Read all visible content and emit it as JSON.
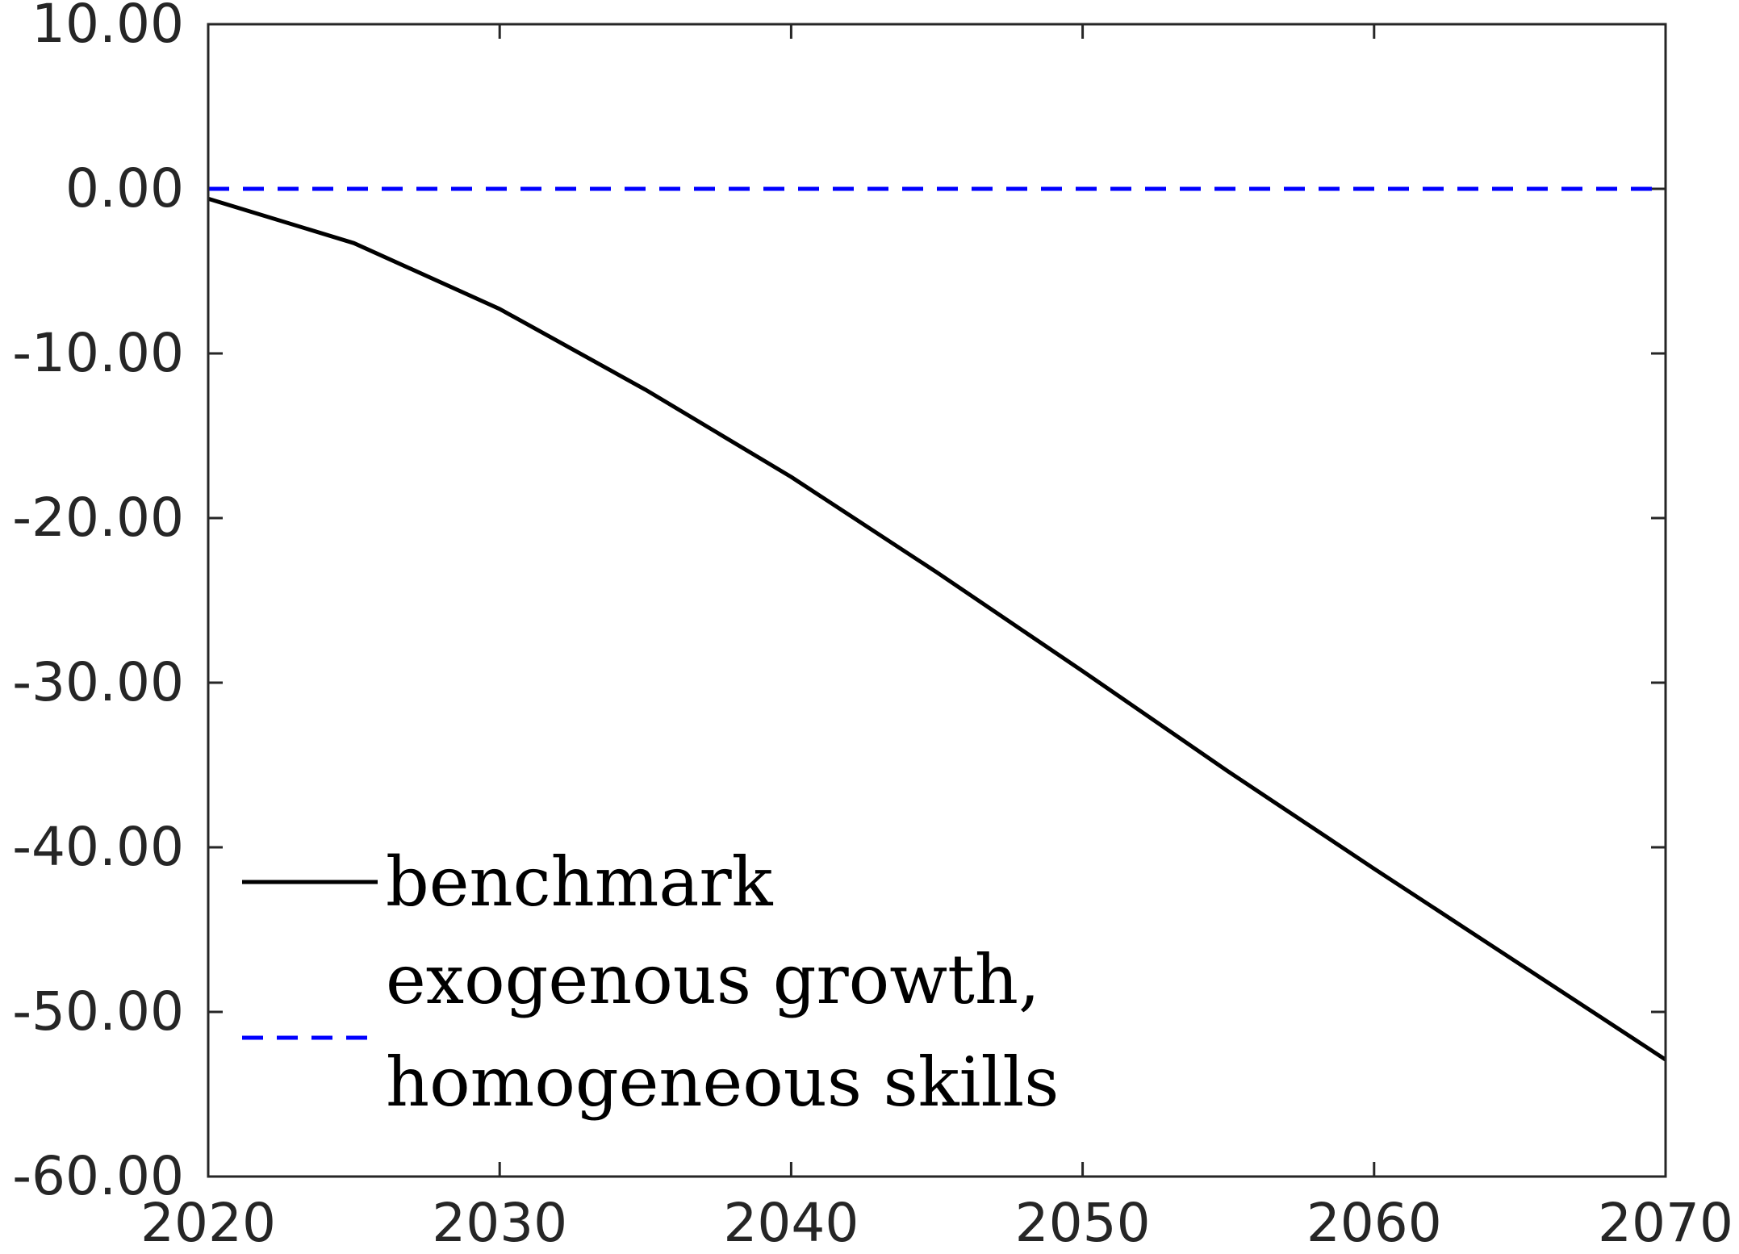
{
  "chart_data": {
    "type": "line",
    "title": "",
    "xlabel": "",
    "ylabel": "",
    "xlim": [
      2020,
      2070
    ],
    "ylim": [
      -60,
      10
    ],
    "xticks": [
      "2020",
      "2030",
      "2040",
      "2050",
      "2060",
      "2070"
    ],
    "yticks": [
      "10.00",
      "0.00",
      "-10.00",
      "-20.00",
      "-30.00",
      "-40.00",
      "-50.00",
      "-60.00"
    ],
    "grid": false,
    "legend_position": "bottom-left",
    "series": [
      {
        "name": "benchmark",
        "color": "#000000",
        "style": "solid",
        "x": [
          2020,
          2025,
          2030,
          2035,
          2040,
          2045,
          2050,
          2055,
          2060,
          2065,
          2070
        ],
        "y": [
          -0.6,
          -3.3,
          -7.3,
          -12.2,
          -17.5,
          -23.3,
          -29.3,
          -35.4,
          -41.3,
          -47.1,
          -52.9
        ]
      },
      {
        "name_lines": [
          "exogenous growth,",
          "homogeneous skills"
        ],
        "color": "#0000ff",
        "style": "dashed",
        "x": [
          2020,
          2070
        ],
        "y": [
          0.0,
          0.0
        ]
      }
    ]
  }
}
